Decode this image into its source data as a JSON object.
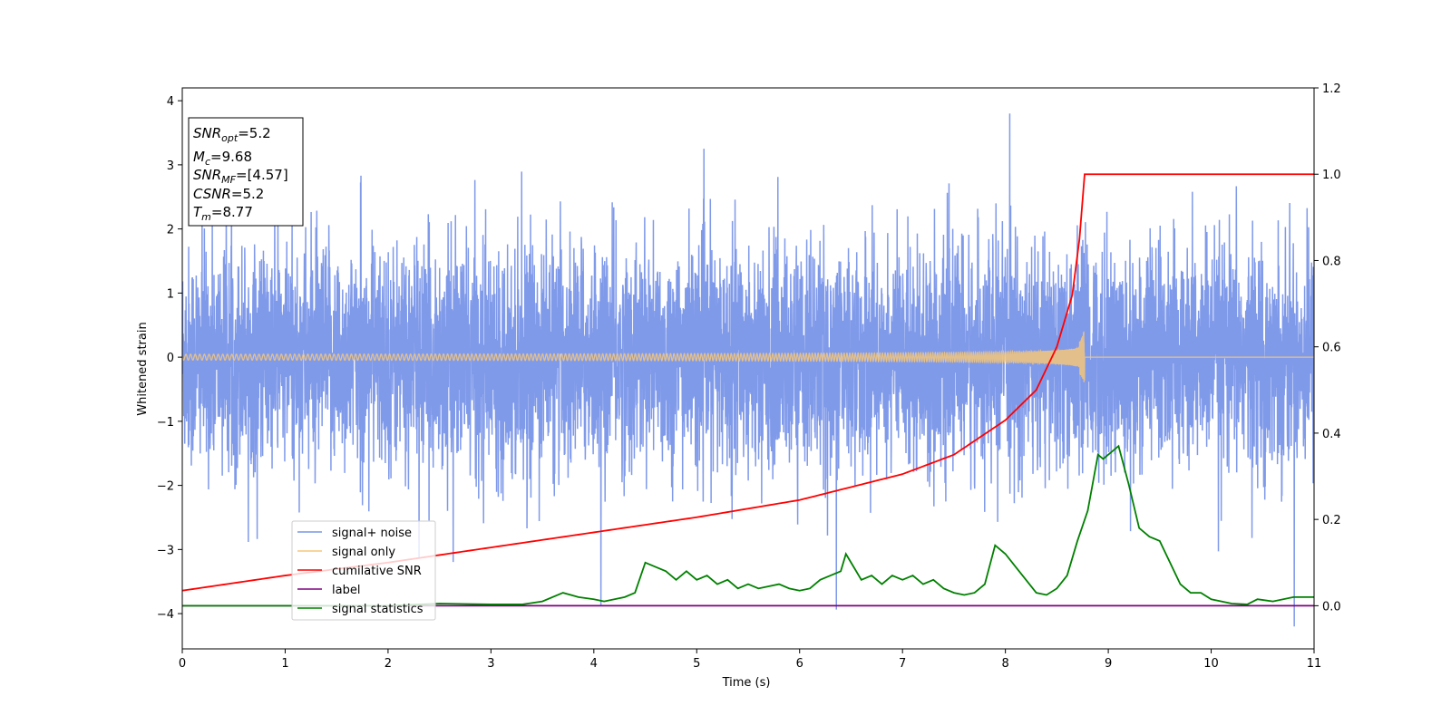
{
  "chart_data": {
    "type": "line",
    "title": "",
    "xlabel": "Time (s)",
    "ylabel": "Whitened strain",
    "xlim": [
      0,
      11
    ],
    "ylim": [
      -4.55,
      4.2
    ],
    "y2lim": [
      -0.1,
      1.2
    ],
    "x_ticks": [
      "0",
      "1",
      "2",
      "3",
      "4",
      "5",
      "6",
      "7",
      "8",
      "9",
      "10",
      "11"
    ],
    "y_ticks": [
      "−4",
      "−3",
      "−2",
      "−1",
      "0",
      "1",
      "2",
      "3",
      "4"
    ],
    "y2_ticks": [
      "0.0",
      "0.2",
      "0.4",
      "0.6",
      "0.8",
      "1.0",
      "1.2"
    ],
    "grid": false,
    "legend_position": "lower-left",
    "info_box": {
      "snr_opt": "=5.2",
      "mc": "=9.68",
      "snr_mf": "=[4.57]",
      "csnr": "=5.2",
      "tm": "=8.77"
    },
    "series": [
      {
        "name": "signal+ noise",
        "color": "#7995e9",
        "axis": "left",
        "description_values": {
          "noise_std": 0.85,
          "peak_max": 3.8,
          "peak_min": -4.2
        }
      },
      {
        "name": "signal only",
        "color": "#f5c77a",
        "axis": "left",
        "merger_time": 8.77,
        "peak_amplitude": 0.75
      },
      {
        "name": "cumilative SNR",
        "color": "#ff0000",
        "axis": "right",
        "x": [
          0,
          1,
          2,
          3,
          4,
          5,
          6,
          7,
          7.5,
          8,
          8.3,
          8.5,
          8.65,
          8.72,
          8.77,
          11
        ],
        "y": [
          0.035,
          0.07,
          0.1,
          0.135,
          0.17,
          0.205,
          0.245,
          0.305,
          0.35,
          0.43,
          0.5,
          0.6,
          0.72,
          0.85,
          1.0,
          1.0
        ]
      },
      {
        "name": "label",
        "color": "#800080",
        "axis": "right",
        "x": [
          0,
          11
        ],
        "y": [
          0.0,
          0.0
        ]
      },
      {
        "name": "signal statistics",
        "color": "#008000",
        "axis": "right",
        "x": [
          0,
          1,
          2,
          2.5,
          3,
          3.3,
          3.5,
          3.7,
          3.85,
          4.0,
          4.1,
          4.3,
          4.4,
          4.5,
          4.6,
          4.7,
          4.8,
          4.9,
          5.0,
          5.1,
          5.2,
          5.3,
          5.4,
          5.5,
          5.6,
          5.8,
          5.9,
          6.0,
          6.1,
          6.2,
          6.3,
          6.4,
          6.45,
          6.5,
          6.6,
          6.7,
          6.8,
          6.9,
          7.0,
          7.1,
          7.2,
          7.3,
          7.4,
          7.5,
          7.6,
          7.7,
          7.8,
          7.9,
          8.0,
          8.1,
          8.2,
          8.3,
          8.4,
          8.5,
          8.6,
          8.7,
          8.8,
          8.9,
          8.95,
          9.0,
          9.1,
          9.2,
          9.3,
          9.4,
          9.5,
          9.6,
          9.7,
          9.8,
          9.9,
          10.0,
          10.2,
          10.35,
          10.45,
          10.6,
          10.8,
          11.0
        ],
        "y": [
          0.0,
          0.0,
          0.0,
          0.005,
          0.003,
          0.003,
          0.01,
          0.03,
          0.02,
          0.015,
          0.01,
          0.02,
          0.03,
          0.1,
          0.09,
          0.08,
          0.06,
          0.08,
          0.06,
          0.07,
          0.05,
          0.06,
          0.04,
          0.05,
          0.04,
          0.05,
          0.04,
          0.035,
          0.04,
          0.06,
          0.07,
          0.08,
          0.12,
          0.1,
          0.06,
          0.07,
          0.05,
          0.07,
          0.06,
          0.07,
          0.05,
          0.06,
          0.04,
          0.03,
          0.025,
          0.03,
          0.05,
          0.14,
          0.12,
          0.09,
          0.06,
          0.03,
          0.025,
          0.04,
          0.07,
          0.15,
          0.22,
          0.35,
          0.34,
          0.35,
          0.37,
          0.28,
          0.18,
          0.16,
          0.15,
          0.1,
          0.05,
          0.03,
          0.03,
          0.015,
          0.005,
          0.003,
          0.015,
          0.01,
          0.02,
          0.02
        ]
      }
    ]
  }
}
